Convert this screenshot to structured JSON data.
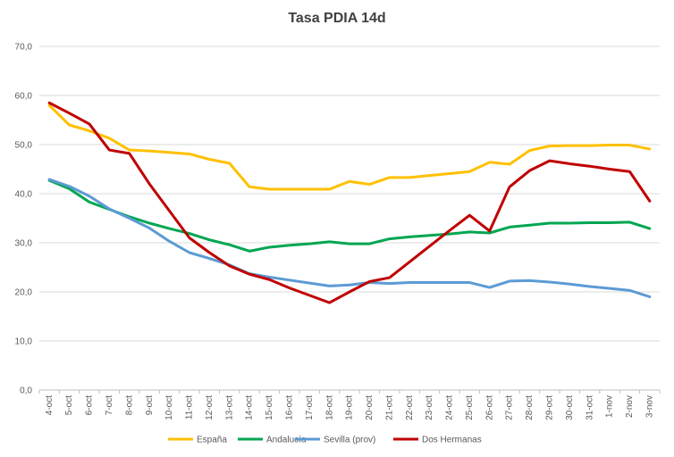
{
  "chart_data": {
    "type": "line",
    "title": "Tasa PDIA 14d",
    "xlabel": "",
    "ylabel": "",
    "ylim": [
      0,
      70
    ],
    "yticks": [
      "0,0",
      "10,0",
      "20,0",
      "30,0",
      "40,0",
      "50,0",
      "60,0",
      "70,0"
    ],
    "grid": true,
    "legend_position": "bottom",
    "categories": [
      "4-oct",
      "5-oct",
      "6-oct",
      "7-oct",
      "8-oct",
      "9-oct",
      "10-oct",
      "11-oct",
      "12-oct",
      "13-oct",
      "14-oct",
      "15-oct",
      "16-oct",
      "17-oct",
      "18-oct",
      "19-oct",
      "20-oct",
      "21-oct",
      "22-oct",
      "23-oct",
      "24-oct",
      "25-oct",
      "26-oct",
      "27-oct",
      "28-oct",
      "29-oct",
      "30-oct",
      "31-oct",
      "1-nov",
      "2-nov",
      "3-nov"
    ],
    "series": [
      {
        "name": "España",
        "color": "#FFC000",
        "values": [
          58.0,
          54.0,
          52.8,
          51.3,
          48.9,
          48.7,
          48.4,
          48.1,
          47.0,
          46.2,
          41.4,
          40.9,
          40.9,
          40.9,
          40.9,
          42.5,
          41.9,
          43.3,
          43.3,
          43.7,
          44.1,
          44.5,
          46.4,
          46.0,
          48.8,
          49.7,
          49.8,
          49.8,
          49.9,
          49.9,
          49.1
        ]
      },
      {
        "name": "Andalucía",
        "color": "#00A651",
        "values": [
          42.7,
          41.0,
          38.3,
          36.8,
          35.3,
          34.0,
          32.9,
          31.9,
          30.6,
          29.6,
          28.3,
          29.1,
          29.5,
          29.8,
          30.2,
          29.8,
          29.8,
          30.8,
          31.2,
          31.5,
          31.8,
          32.2,
          32.0,
          33.2,
          33.6,
          34.0,
          34.0,
          34.1,
          34.1,
          34.2,
          32.9
        ]
      },
      {
        "name": "Sevilla (prov)",
        "color": "#5B9BD5",
        "values": [
          42.9,
          41.5,
          39.5,
          36.9,
          35.0,
          33.0,
          30.3,
          28.0,
          26.8,
          25.5,
          23.7,
          23.0,
          22.4,
          21.8,
          21.2,
          21.4,
          21.9,
          21.7,
          21.9,
          21.9,
          21.9,
          21.9,
          20.9,
          22.2,
          22.3,
          22.0,
          21.6,
          21.1,
          20.7,
          20.3,
          19.0
        ]
      },
      {
        "name": "Dos Hermanas",
        "color": "#C00000",
        "values": [
          58.5,
          56.4,
          54.2,
          48.9,
          48.2,
          42.0,
          36.5,
          31.0,
          28.0,
          25.3,
          23.6,
          22.5,
          20.8,
          19.3,
          17.8,
          20.0,
          22.1,
          22.9,
          26.1,
          29.3,
          32.5,
          35.6,
          32.4,
          41.4,
          44.7,
          46.7,
          46.1,
          45.6,
          45.0,
          44.5,
          38.5
        ]
      }
    ]
  }
}
